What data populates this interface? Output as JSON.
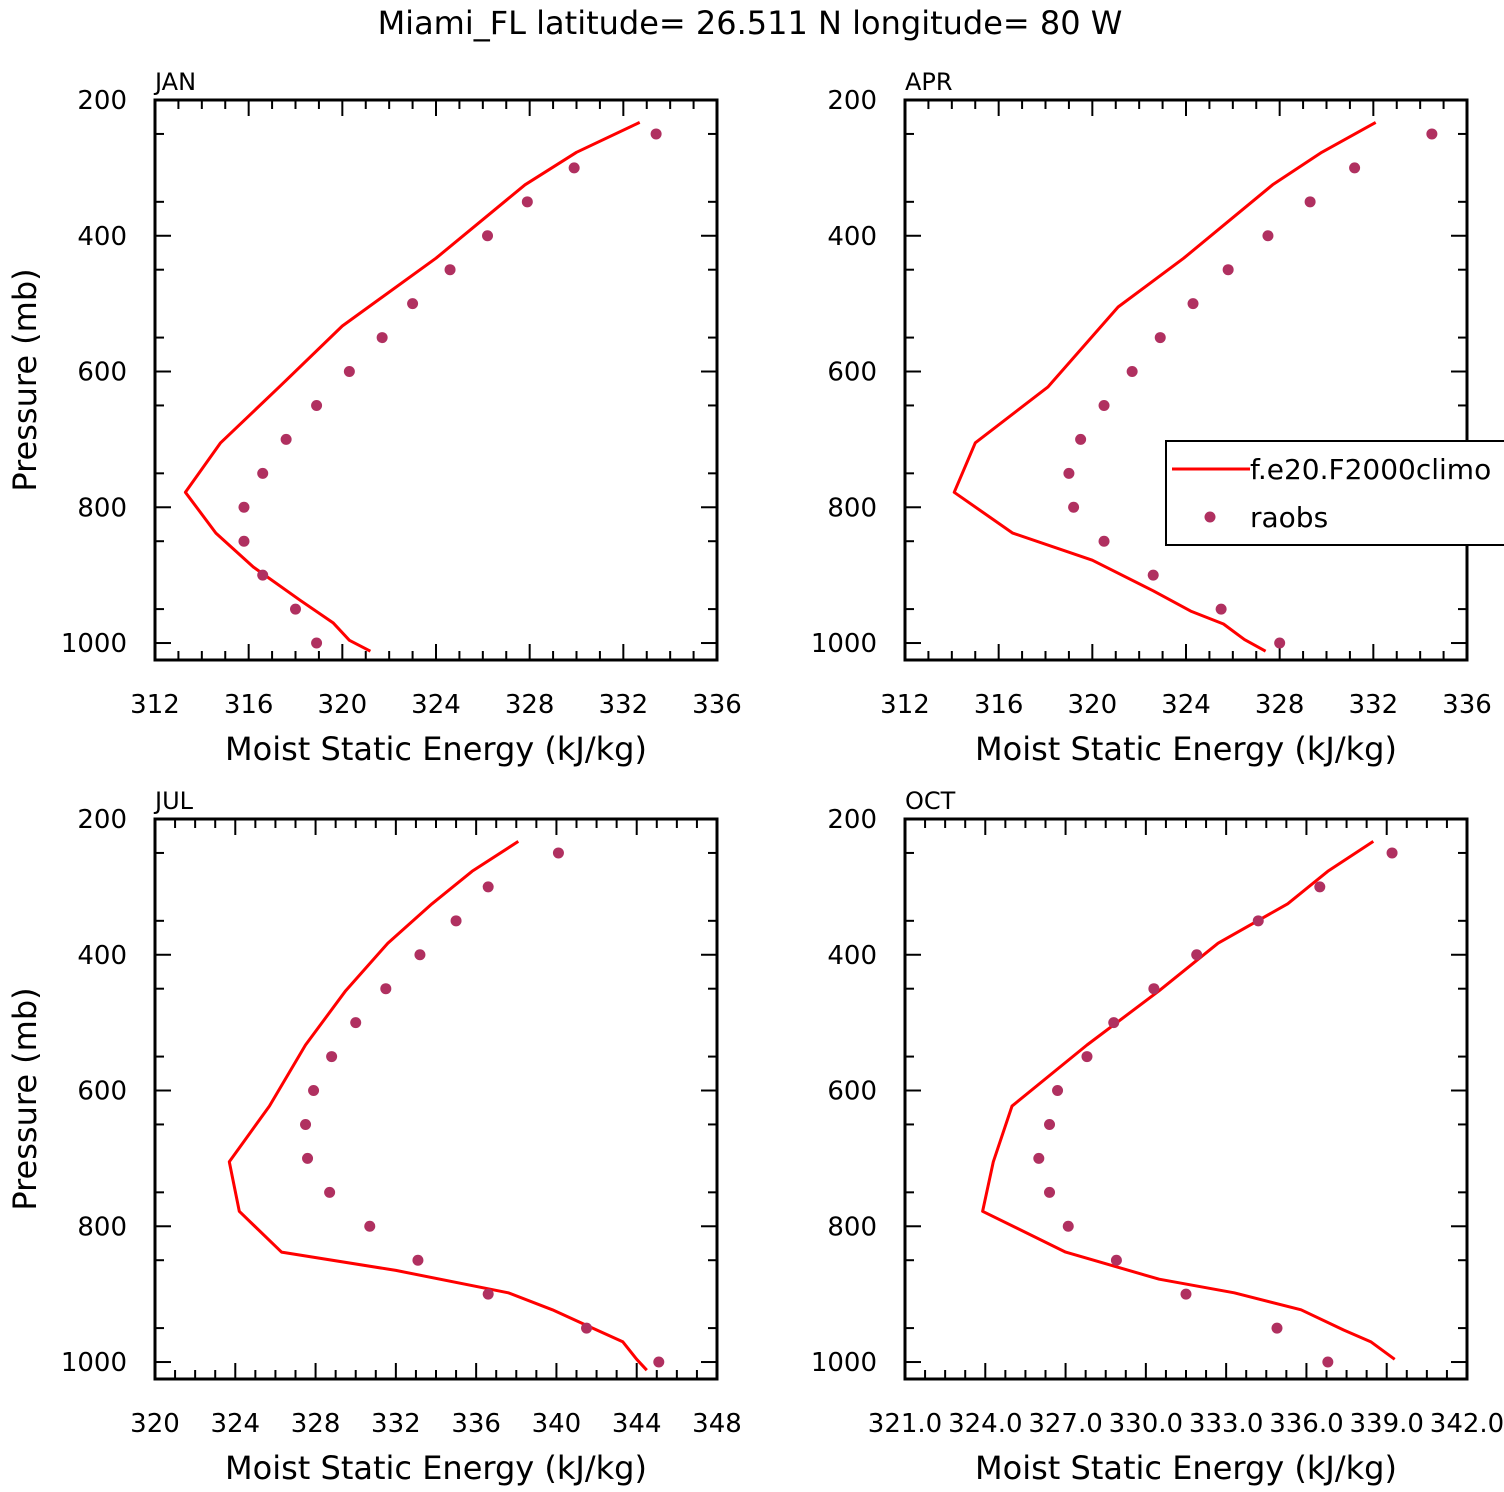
{
  "title": "Miami_FL  latitude= 26.511 N longitude= 80 W",
  "colors": {
    "model": "#ff0000",
    "obs": "#b03060",
    "axis": "#000000"
  },
  "legend": {
    "model_label": "f.e20.F2000climo",
    "obs_label": "raobs"
  },
  "chart_data": [
    {
      "type": "line",
      "panel": "JAN",
      "xlabel": "Moist Static Energy (kJ/kg)",
      "ylabel": "Pressure (mb)",
      "xlim": [
        312,
        336
      ],
      "ylim": [
        200,
        1025
      ],
      "x_ticks": [
        312,
        316,
        320,
        324,
        328,
        332,
        336
      ],
      "x_tick_labels": [
        "312",
        "316",
        "320",
        "324",
        "328",
        "332",
        "336"
      ],
      "y_ticks": [
        200,
        400,
        600,
        800,
        1000
      ],
      "y_tick_labels": [
        "200",
        "400",
        "600",
        "800",
        "1000"
      ],
      "series": [
        {
          "name": "f.e20.F2000climo",
          "kind": "line",
          "x": [
            332.7,
            330.0,
            327.8,
            324.0,
            320.0,
            317.3,
            314.8,
            313.3,
            314.6,
            316.2,
            318.2,
            319.6,
            320.3,
            321.2
          ],
          "y": [
            233,
            277,
            325,
            433,
            533,
            623,
            705,
            778,
            838,
            888,
            937,
            970,
            996,
            1012
          ]
        },
        {
          "name": "raobs",
          "kind": "marker",
          "x": [
            333.4,
            329.9,
            327.9,
            326.2,
            324.6,
            323.0,
            321.7,
            320.3,
            318.9,
            317.6,
            316.6,
            315.8,
            315.8,
            316.6,
            318.0,
            318.9
          ],
          "y": [
            250,
            300,
            350,
            400,
            450,
            500,
            550,
            600,
            650,
            700,
            750,
            800,
            850,
            900,
            950,
            1000
          ]
        }
      ]
    },
    {
      "type": "line",
      "panel": "APR",
      "xlabel": "Moist Static Energy (kJ/kg)",
      "ylabel": "",
      "xlim": [
        312,
        336
      ],
      "ylim": [
        200,
        1025
      ],
      "x_ticks": [
        312,
        316,
        320,
        324,
        328,
        332,
        336
      ],
      "x_tick_labels": [
        "312",
        "316",
        "320",
        "324",
        "328",
        "332",
        "336"
      ],
      "y_ticks": [
        200,
        400,
        600,
        800,
        1000
      ],
      "y_tick_labels": [
        "200",
        "400",
        "600",
        "800",
        "1000"
      ],
      "series": [
        {
          "name": "f.e20.F2000climo",
          "kind": "line",
          "x": [
            332.1,
            329.8,
            327.7,
            323.9,
            321.1,
            318.1,
            315.0,
            314.1,
            316.6,
            320.0,
            322.6,
            324.2,
            325.6,
            326.5,
            327.4
          ],
          "y": [
            233,
            277,
            325,
            433,
            505,
            623,
            705,
            778,
            838,
            878,
            923,
            953,
            972,
            995,
            1012
          ]
        },
        {
          "name": "raobs",
          "kind": "marker",
          "x": [
            334.5,
            331.2,
            329.3,
            327.5,
            325.8,
            324.3,
            322.9,
            321.7,
            320.5,
            319.5,
            319.0,
            319.2,
            320.5,
            322.6,
            325.5,
            328.0
          ],
          "y": [
            250,
            300,
            350,
            400,
            450,
            500,
            550,
            600,
            650,
            700,
            750,
            800,
            850,
            900,
            950,
            1000
          ]
        }
      ]
    },
    {
      "type": "line",
      "panel": "JUL",
      "xlabel": "Moist Static Energy (kJ/kg)",
      "ylabel": "Pressure (mb)",
      "xlim": [
        320,
        348
      ],
      "ylim": [
        200,
        1025
      ],
      "x_ticks": [
        320,
        324,
        328,
        332,
        336,
        340,
        344,
        348
      ],
      "x_tick_labels": [
        "320",
        "324",
        "328",
        "332",
        "336",
        "340",
        "344",
        "348"
      ],
      "y_ticks": [
        200,
        400,
        600,
        800,
        1000
      ],
      "y_tick_labels": [
        "200",
        "400",
        "600",
        "800",
        "1000"
      ],
      "series": [
        {
          "name": "f.e20.F2000climo",
          "kind": "line",
          "x": [
            338.1,
            335.8,
            333.8,
            331.6,
            329.5,
            327.5,
            325.7,
            323.7,
            324.2,
            326.3,
            332.0,
            337.6,
            339.8,
            341.8,
            343.3,
            344.0,
            344.5
          ],
          "y": [
            233,
            277,
            325,
            383,
            453,
            533,
            623,
            705,
            778,
            838,
            865,
            898,
            923,
            950,
            970,
            996,
            1012
          ]
        },
        {
          "name": "raobs",
          "kind": "marker",
          "x": [
            340.1,
            336.6,
            335.0,
            333.2,
            331.5,
            330.0,
            328.8,
            327.9,
            327.5,
            327.6,
            328.7,
            330.7,
            333.1,
            336.6,
            341.5,
            345.1
          ],
          "y": [
            250,
            300,
            350,
            400,
            450,
            500,
            550,
            600,
            650,
            700,
            750,
            800,
            850,
            900,
            950,
            1000
          ]
        }
      ]
    },
    {
      "type": "line",
      "panel": "OCT",
      "xlabel": "Moist Static Energy (kJ/kg)",
      "ylabel": "",
      "xlim": [
        321.0,
        342.0
      ],
      "ylim": [
        200,
        1025
      ],
      "x_ticks": [
        321.0,
        324.0,
        327.0,
        330.0,
        333.0,
        336.0,
        339.0,
        342.0
      ],
      "x_tick_labels": [
        "321.0",
        "324.0",
        "327.0",
        "330.0",
        "333.0",
        "336.0",
        "339.0",
        "342.0"
      ],
      "y_ticks": [
        200,
        400,
        600,
        800,
        1000
      ],
      "y_tick_labels": [
        "200",
        "400",
        "600",
        "800",
        "1000"
      ],
      "series": [
        {
          "name": "f.e20.F2000climo",
          "kind": "line",
          "x": [
            338.5,
            336.8,
            335.3,
            332.7,
            330.5,
            327.8,
            325.0,
            324.3,
            323.9,
            327.0,
            330.5,
            333.3,
            335.8,
            337.4,
            338.4,
            339.3
          ],
          "y": [
            233,
            277,
            325,
            383,
            453,
            533,
            623,
            705,
            778,
            838,
            878,
            898,
            923,
            953,
            970,
            996
          ]
        },
        {
          "name": "raobs",
          "kind": "marker",
          "x": [
            339.2,
            336.5,
            334.2,
            331.9,
            330.3,
            328.8,
            327.8,
            326.7,
            326.4,
            326.0,
            326.4,
            327.1,
            328.9,
            331.5,
            334.9,
            336.8
          ],
          "y": [
            250,
            300,
            350,
            400,
            450,
            500,
            550,
            600,
            650,
            700,
            750,
            800,
            850,
            900,
            950,
            1000
          ]
        }
      ]
    }
  ]
}
